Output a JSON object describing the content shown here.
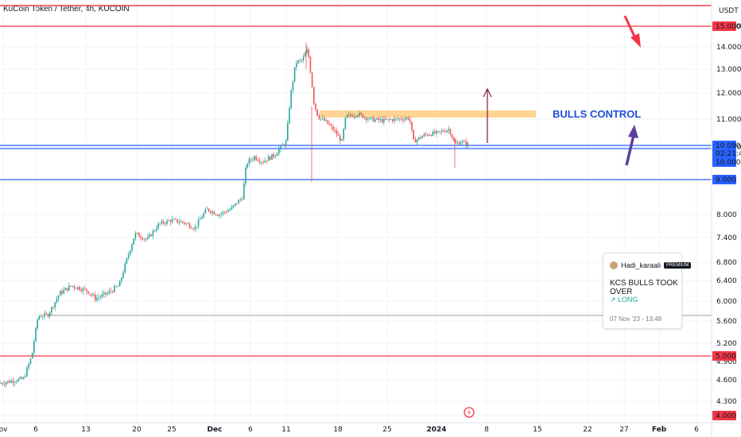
{
  "header": {
    "title": "KuCoin Token / Tether, 4h, KUCOIN"
  },
  "chart_data": {
    "type": "candlestick",
    "currency": "USDT",
    "y_ticks": [
      "15.000",
      "14.000",
      "13.000",
      "12.000",
      "11.000",
      "10.000",
      "9.000",
      "8.000",
      "7.400",
      "6.800",
      "6.400",
      "6.000",
      "5.600",
      "5.200",
      "5.000",
      "4.900",
      "4.600",
      "4.300",
      "4.000"
    ],
    "x_ticks": [
      "ov",
      "6",
      "13",
      "20",
      "25",
      "Dec",
      "6",
      "11",
      "18",
      "25",
      "2024",
      "8",
      "15",
      "22",
      "27",
      "Feb",
      "6"
    ],
    "price_badges": [
      {
        "value": "15.000",
        "color": "#f23645"
      },
      {
        "value": "10.090",
        "color": "#2962ff"
      },
      {
        "value": "02:21:47",
        "color": "#2962ff"
      },
      {
        "value": "10.000",
        "color": "#2962ff"
      },
      {
        "value": "9.000",
        "color": "#2962ff"
      },
      {
        "value": "5.000",
        "color": "#f23645"
      },
      {
        "value": "4.000",
        "color": "#f23645"
      }
    ],
    "horizontal_lines": [
      {
        "price": "15.000",
        "color": "#f23645"
      },
      {
        "price": "10.090",
        "color": "#2962ff"
      },
      {
        "price": "10.000",
        "color": "#2962ff"
      },
      {
        "price": "9.000",
        "color": "#2962ff"
      },
      {
        "price": "5.000",
        "color": "#f23645"
      },
      {
        "price": "4.000",
        "color": "#f23645"
      }
    ],
    "annotations": {
      "note": "BULLS CONTROL"
    },
    "colors": {
      "up": "#26a69a",
      "down": "#ef5350",
      "zone": "#ffcc80",
      "arrow_purple": "#5b3d9c",
      "arrow_red": "#f23645"
    }
  },
  "idea_card": {
    "user": "Hadi_karaali",
    "badge": "PREMIUM",
    "idea": "KCS BULLS TOOK OVER",
    "direction": "↗ LONG",
    "timestamp": "07 Nov '23 - 13:48"
  }
}
